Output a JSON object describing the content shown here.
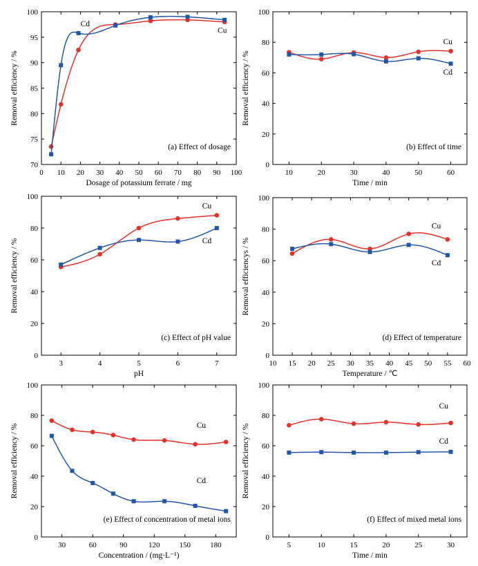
{
  "colors": {
    "cu": "#e3312b",
    "cd": "#2456a8"
  },
  "chart_data": [
    {
      "type": "line",
      "caption": "(a) Effect of dosage",
      "xlabel": "Dosage of potassium ferrate / mg",
      "ylabel": "Removal efficiency / %",
      "xlim": [
        0,
        100
      ],
      "ylim": [
        70,
        100
      ],
      "xticks": [
        0,
        10,
        20,
        30,
        40,
        50,
        60,
        70,
        80,
        90,
        100
      ],
      "yticks": [
        70,
        75,
        80,
        85,
        90,
        95,
        100
      ],
      "series": [
        {
          "name": "Cu",
          "marker": "circle",
          "x": [
            5,
            10,
            19,
            38,
            56,
            75,
            94
          ],
          "y": [
            73.5,
            81.8,
            92.5,
            97.5,
            98.2,
            98.4,
            98.0
          ]
        },
        {
          "name": "Cd",
          "marker": "square",
          "x": [
            5,
            10,
            19,
            38,
            56,
            75,
            94
          ],
          "y": [
            72.0,
            89.5,
            95.8,
            97.3,
            98.9,
            99.0,
            98.4
          ]
        }
      ]
    },
    {
      "type": "line",
      "caption": "(b) Effect of time",
      "xlabel": "Time / min",
      "ylabel": "Removal efficiency / %",
      "xlim": [
        5,
        65
      ],
      "ylim": [
        0,
        100
      ],
      "xticks": [
        10,
        20,
        30,
        40,
        50,
        60
      ],
      "yticks": [
        0,
        20,
        40,
        60,
        80,
        100
      ],
      "series": [
        {
          "name": "Cu",
          "marker": "circle",
          "x": [
            10,
            20,
            30,
            40,
            50,
            60
          ],
          "y": [
            73.5,
            69.0,
            73.3,
            70.0,
            73.8,
            74.2
          ]
        },
        {
          "name": "Cd",
          "marker": "square",
          "x": [
            10,
            20,
            30,
            40,
            50,
            60
          ],
          "y": [
            72.0,
            72.0,
            72.2,
            67.5,
            69.5,
            66.0
          ]
        }
      ]
    },
    {
      "type": "line",
      "caption": "(c) Effect of pH value",
      "xlabel": "pH",
      "ylabel": "Removal efficiency / %",
      "xlim": [
        2.5,
        7.5
      ],
      "ylim": [
        0,
        100
      ],
      "xticks": [
        3,
        4,
        5,
        6,
        7
      ],
      "yticks": [
        0,
        20,
        40,
        60,
        80,
        100
      ],
      "series": [
        {
          "name": "Cu",
          "marker": "circle",
          "x": [
            3,
            4,
            5,
            6,
            7
          ],
          "y": [
            55.5,
            63.5,
            80.0,
            86.0,
            88.0
          ]
        },
        {
          "name": "Cd",
          "marker": "square",
          "x": [
            3,
            4,
            5,
            6,
            7
          ],
          "y": [
            57.0,
            67.5,
            72.5,
            71.5,
            80.0
          ]
        }
      ]
    },
    {
      "type": "line",
      "caption": "(d) Effect of temperature",
      "xlabel": "Temperature / ℃",
      "ylabel": "Removal efficiencys / %",
      "xlim": [
        10,
        60
      ],
      "ylim": [
        0,
        100
      ],
      "xticks": [
        10,
        15,
        20,
        25,
        30,
        35,
        40,
        45,
        50,
        55,
        60
      ],
      "yticks": [
        0,
        20,
        40,
        60,
        80,
        100
      ],
      "series": [
        {
          "name": "Cu",
          "marker": "circle",
          "x": [
            15,
            25,
            35,
            45,
            55
          ],
          "y": [
            64.5,
            73.5,
            67.5,
            77.0,
            73.5
          ]
        },
        {
          "name": "Cd",
          "marker": "square",
          "x": [
            15,
            25,
            35,
            45,
            55
          ],
          "y": [
            67.5,
            70.5,
            65.5,
            70.0,
            63.5
          ]
        }
      ]
    },
    {
      "type": "line",
      "caption": "(e) Effect of concentration of metal ions",
      "xlabel": "Concentration / (mg·L⁻¹)",
      "ylabel": "Removal efficiency / %",
      "xlim": [
        10,
        200
      ],
      "ylim": [
        0,
        100
      ],
      "xticks": [
        30,
        60,
        90,
        120,
        150,
        180
      ],
      "yticks": [
        0,
        20,
        40,
        60,
        80,
        100
      ],
      "series": [
        {
          "name": "Cu",
          "marker": "circle",
          "x": [
            20,
            40,
            60,
            80,
            100,
            130,
            160,
            190
          ],
          "y": [
            76.5,
            70.5,
            69.0,
            67.0,
            64.0,
            63.5,
            61.0,
            62.5
          ]
        },
        {
          "name": "Cd",
          "marker": "square",
          "x": [
            20,
            40,
            60,
            80,
            100,
            130,
            160,
            190
          ],
          "y": [
            66.5,
            43.5,
            35.5,
            28.5,
            23.5,
            23.5,
            20.5,
            17.0
          ]
        }
      ]
    },
    {
      "type": "line",
      "caption": "(f) Effect of mixed metal ions",
      "xlabel": "Time / min",
      "ylabel": "Removal efficiency / %",
      "xlim": [
        2.5,
        32.5
      ],
      "ylim": [
        0,
        100
      ],
      "xticks": [
        5,
        10,
        15,
        20,
        25,
        30
      ],
      "yticks": [
        0,
        20,
        40,
        60,
        80,
        100
      ],
      "series": [
        {
          "name": "Cu",
          "marker": "circle",
          "x": [
            5,
            10,
            15,
            20,
            25,
            30
          ],
          "y": [
            73.5,
            77.5,
            74.5,
            75.5,
            74.0,
            75.0
          ]
        },
        {
          "name": "Cd",
          "marker": "square",
          "x": [
            5,
            10,
            15,
            20,
            25,
            30
          ],
          "y": [
            55.5,
            55.8,
            55.5,
            55.5,
            55.8,
            56.0
          ]
        }
      ]
    }
  ]
}
